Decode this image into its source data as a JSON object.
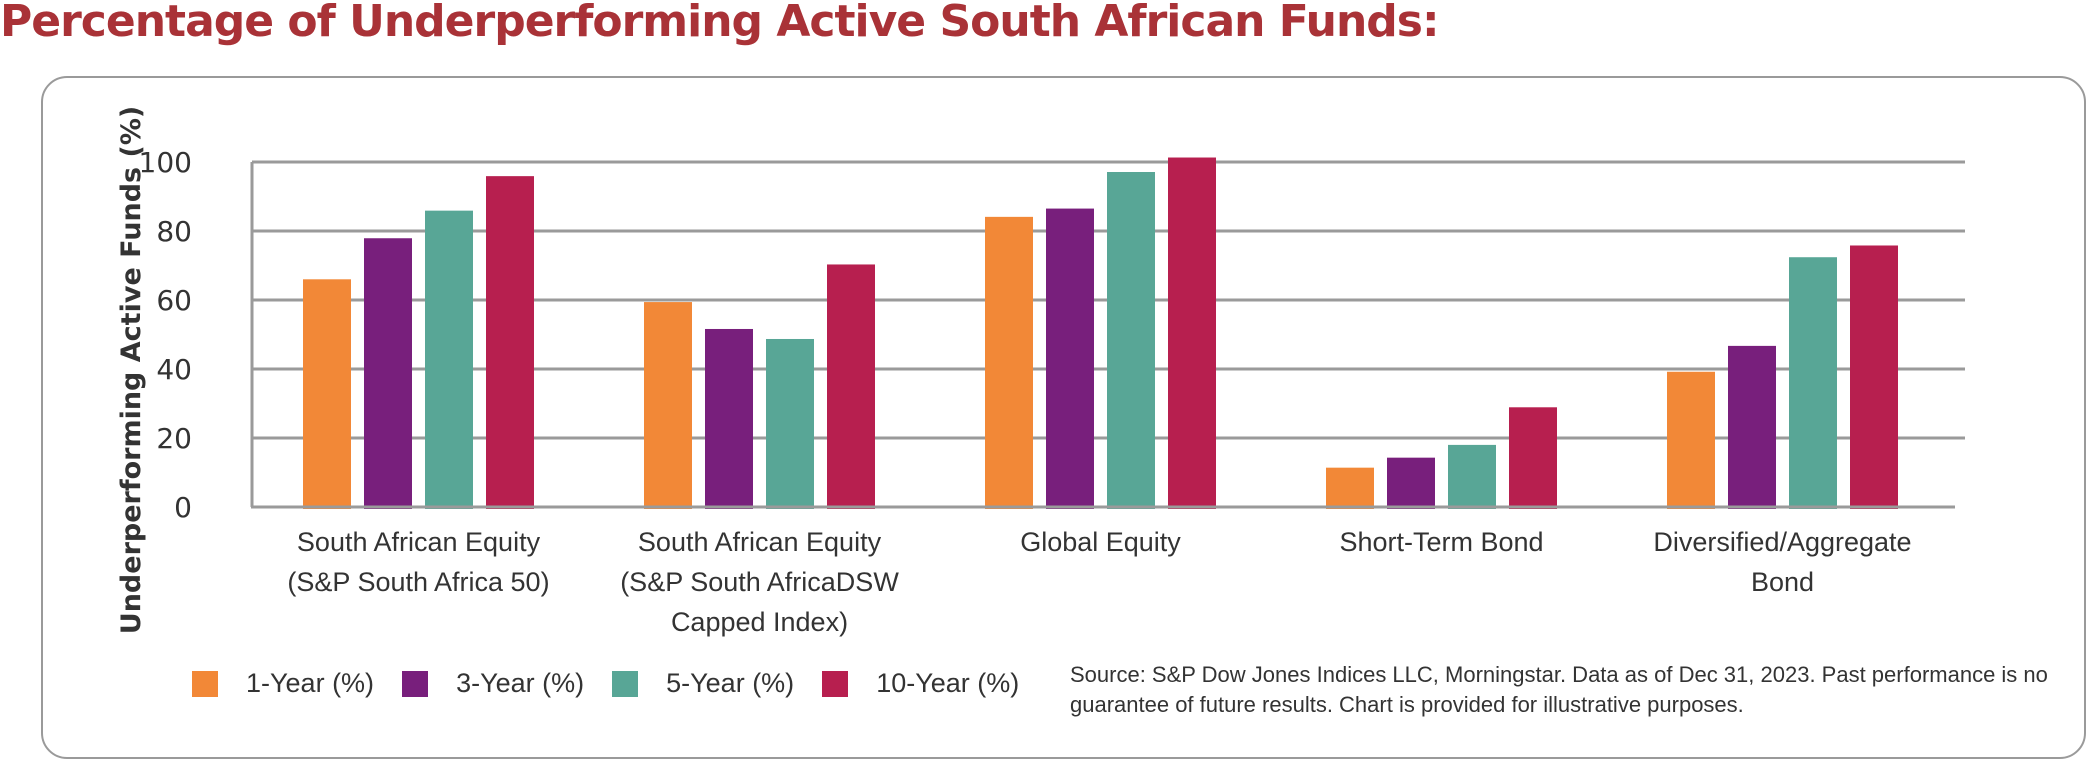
{
  "title": "Percentage of Underperforming Active South African Funds:",
  "colors": {
    "title": "#a93237",
    "grid": "#9a9a9a",
    "text": "#333333"
  },
  "chart_data": {
    "type": "bar",
    "title": "Percentage of Underperforming Active South African Funds:",
    "xlabel": "",
    "ylabel": "Underperforming Active Funds (%)",
    "ylim": [
      0,
      100
    ],
    "yticks": [
      0,
      20,
      40,
      60,
      80,
      100
    ],
    "grid": true,
    "legend_position": "bottom-left",
    "categories": [
      [
        "South African Equity",
        "(S&P South Africa 50)"
      ],
      [
        "South African Equity",
        "(S&P South AfricaDSW",
        "Capped Index)"
      ],
      [
        "Global Equity"
      ],
      [
        "Short-Term Bond"
      ],
      [
        "Diversified/Aggregate",
        "Bond"
      ]
    ],
    "series": [
      {
        "name": "1-Year (%)",
        "color": "#f28837",
        "values": [
          66.0,
          59.4,
          84.1,
          11.4,
          39.2
        ]
      },
      {
        "name": "3-Year (%)",
        "color": "#781f7c",
        "values": [
          77.9,
          51.6,
          86.5,
          14.3,
          46.7
        ]
      },
      {
        "name": "5-Year (%)",
        "color": "#58a696",
        "values": [
          85.9,
          48.7,
          97.1,
          18.0,
          72.4
        ]
      },
      {
        "name": "10-Year (%)",
        "color": "#b71f4f",
        "values": [
          95.9,
          70.3,
          101.3,
          28.9,
          75.8
        ]
      }
    ]
  },
  "source_lines": [
    "Source: S&P Dow Jones Indices LLC, Morningstar. Data as of Dec 31, 2023. Past performance is no",
    "guarantee of future results. Chart is provided for illustrative purposes."
  ]
}
